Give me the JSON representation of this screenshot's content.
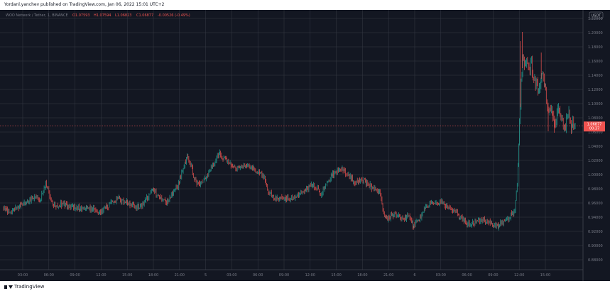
{
  "header": {
    "publisher_line": "Yordanl.yanchev published on TradingView.com, Jan 06, 2022 15:01 UTC+2"
  },
  "legend": {
    "symbol": "WOO Network / Tether, 1, BINANCE",
    "open": "O1.07593",
    "high": "H1.07594",
    "low": "L1.06823",
    "close": "C1.06877",
    "change": "-0.00526 (-0.49%)"
  },
  "currency": "USDT",
  "price_tag": {
    "price": "1.06877",
    "countdown": "00:37"
  },
  "footer": {
    "brand": "TradingView"
  },
  "colors": {
    "background": "#131722",
    "grid": "#363a45",
    "up": "#26a69a",
    "down": "#ef5350",
    "axis_text": "#787b86",
    "tag": "#ef5350"
  },
  "chart_data": {
    "type": "candlestick",
    "y_ticks": [
      "1.22000",
      "1.20000",
      "1.18000",
      "1.16000",
      "1.14000",
      "1.12000",
      "1.10000",
      "1.08000",
      "1.06000",
      "1.04000",
      "1.02000",
      "1.00000",
      "0.98000",
      "0.96000",
      "0.94000",
      "0.92000",
      "0.90000",
      "0.88000"
    ],
    "ylim": [
      0.87,
      1.23
    ],
    "x_ticks": [
      "03:00",
      "06:00",
      "09:00",
      "12:00",
      "15:00",
      "18:00",
      "21:00",
      "5",
      "03:00",
      "06:00",
      "09:00",
      "12:00",
      "15:00",
      "18:00",
      "21:00",
      "6",
      "03:00",
      "06:00",
      "09:00",
      "12:00",
      "15:00"
    ],
    "last_price": 1.06877,
    "series": [
      {
        "name": "WOO Network / Tether",
        "path": [
          [
            0,
            0.953
          ],
          [
            6,
            0.947
          ],
          [
            12,
            0.951
          ],
          [
            18,
            0.956
          ],
          [
            24,
            0.962
          ],
          [
            30,
            0.968
          ],
          [
            36,
            0.966
          ],
          [
            40,
            0.975
          ],
          [
            42,
            0.99
          ],
          [
            44,
            0.983
          ],
          [
            48,
            0.962
          ],
          [
            52,
            0.955
          ],
          [
            58,
            0.958
          ],
          [
            66,
            0.956
          ],
          [
            72,
            0.953
          ],
          [
            78,
            0.952
          ],
          [
            84,
            0.951
          ],
          [
            90,
            0.953
          ],
          [
            94,
            0.946
          ],
          [
            98,
            0.949
          ],
          [
            104,
            0.955
          ],
          [
            110,
            0.962
          ],
          [
            116,
            0.967
          ],
          [
            120,
            0.961
          ],
          [
            126,
            0.96
          ],
          [
            132,
            0.954
          ],
          [
            138,
            0.955
          ],
          [
            142,
            0.964
          ],
          [
            146,
            0.973
          ],
          [
            150,
            0.979
          ],
          [
            152,
            0.974
          ],
          [
            158,
            0.966
          ],
          [
            162,
            0.961
          ],
          [
            166,
            0.968
          ],
          [
            170,
            0.976
          ],
          [
            174,
            0.983
          ],
          [
            178,
            1.001
          ],
          [
            182,
            1.018
          ],
          [
            184,
            1.028
          ],
          [
            186,
            1.015
          ],
          [
            188,
            1.011
          ],
          [
            190,
            0.998
          ],
          [
            194,
            0.988
          ],
          [
            198,
            0.986
          ],
          [
            202,
            0.993
          ],
          [
            206,
            1.005
          ],
          [
            210,
            1.013
          ],
          [
            214,
            1.025
          ],
          [
            216,
            1.03
          ],
          [
            220,
            1.022
          ],
          [
            224,
            1.018
          ],
          [
            228,
            1.012
          ],
          [
            234,
            1.01
          ],
          [
            240,
            1.013
          ],
          [
            246,
            1.011
          ],
          [
            252,
            1.006
          ],
          [
            258,
            1.0
          ],
          [
            262,
            0.994
          ],
          [
            264,
            0.978
          ],
          [
            268,
            0.972
          ],
          [
            272,
            0.968
          ],
          [
            278,
            0.966
          ],
          [
            284,
            0.967
          ],
          [
            290,
            0.966
          ],
          [
            296,
            0.97
          ],
          [
            300,
            0.976
          ],
          [
            304,
            0.979
          ],
          [
            308,
            0.986
          ],
          [
            312,
            0.984
          ],
          [
            316,
            0.976
          ],
          [
            318,
            0.973
          ],
          [
            322,
            0.984
          ],
          [
            328,
            0.998
          ],
          [
            332,
            1.003
          ],
          [
            336,
            1.009
          ],
          [
            340,
            1.006
          ],
          [
            344,
            0.999
          ],
          [
            348,
            0.994
          ],
          [
            352,
            0.989
          ],
          [
            356,
            0.992
          ],
          [
            360,
            0.991
          ],
          [
            364,
            0.987
          ],
          [
            368,
            0.983
          ],
          [
            372,
            0.979
          ],
          [
            376,
            0.976
          ],
          [
            378,
            0.966
          ],
          [
            380,
            0.946
          ],
          [
            384,
            0.938
          ],
          [
            388,
            0.942
          ],
          [
            392,
            0.944
          ],
          [
            396,
            0.941
          ],
          [
            400,
            0.936
          ],
          [
            404,
            0.941
          ],
          [
            408,
            0.937
          ],
          [
            410,
            0.928
          ],
          [
            414,
            0.934
          ],
          [
            418,
            0.942
          ],
          [
            422,
            0.953
          ],
          [
            426,
            0.958
          ],
          [
            430,
            0.962
          ],
          [
            434,
            0.957
          ],
          [
            438,
            0.962
          ],
          [
            442,
            0.958
          ],
          [
            446,
            0.952
          ],
          [
            450,
            0.948
          ],
          [
            454,
            0.944
          ],
          [
            458,
            0.938
          ],
          [
            462,
            0.936
          ],
          [
            466,
            0.929
          ],
          [
            470,
            0.931
          ],
          [
            474,
            0.934
          ],
          [
            478,
            0.937
          ],
          [
            482,
            0.936
          ],
          [
            486,
            0.932
          ],
          [
            490,
            0.929
          ],
          [
            494,
            0.927
          ],
          [
            498,
            0.931
          ],
          [
            502,
            0.935
          ],
          [
            506,
            0.94
          ],
          [
            508,
            0.944
          ],
          [
            510,
            0.941
          ],
          [
            512,
            0.955
          ],
          [
            514,
            0.988
          ],
          [
            516,
            1.06
          ],
          [
            518,
            1.13
          ],
          [
            520,
            1.17
          ],
          [
            522,
            1.15
          ],
          [
            524,
            1.16
          ],
          [
            526,
            1.15
          ],
          [
            528,
            1.158
          ],
          [
            530,
            1.14
          ],
          [
            532,
            1.132
          ],
          [
            534,
            1.125
          ],
          [
            536,
            1.12
          ],
          [
            538,
            1.135
          ],
          [
            540,
            1.14
          ],
          [
            542,
            1.12
          ],
          [
            544,
            1.1
          ],
          [
            546,
            1.085
          ],
          [
            548,
            1.095
          ],
          [
            550,
            1.08
          ],
          [
            552,
            1.075
          ],
          [
            554,
            1.085
          ],
          [
            556,
            1.095
          ],
          [
            558,
            1.08
          ],
          [
            560,
            1.072
          ],
          [
            562,
            1.068
          ],
          [
            564,
            1.079
          ],
          [
            566,
            1.085
          ],
          [
            568,
            1.066
          ],
          [
            570,
            1.074
          ],
          [
            572,
            1.069
          ]
        ]
      }
    ]
  }
}
